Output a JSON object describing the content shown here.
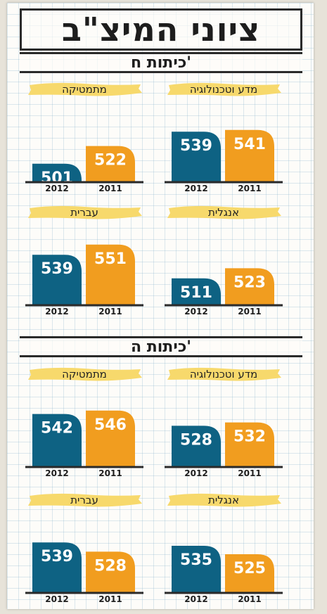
{
  "title": "ציוני המיצ\"ב",
  "colors": {
    "year_2012": "#0e6283",
    "year_2011": "#f19d1f",
    "highlight": "#f7d96c",
    "ink": "#2a2a2a"
  },
  "sections": [
    {
      "heading": "כיתות ח'",
      "panels": [
        {
          "subject": "מדע וטכנולוגיה"
        },
        {
          "subject": "מתמטיקה"
        },
        {
          "subject": "אנגלית"
        },
        {
          "subject": "עברית"
        }
      ]
    },
    {
      "heading": "כיתות ה'",
      "panels": [
        {
          "subject": "מדע וטכנולוגיה"
        },
        {
          "subject": "מתמטיקה"
        },
        {
          "subject": "אנגלית"
        },
        {
          "subject": "עברית"
        }
      ]
    }
  ],
  "chart_data": [
    {
      "type": "bar",
      "title": "מדע וטכנולוגיה",
      "group": "כיתות ח'",
      "categories": [
        "2012",
        "2011"
      ],
      "values": [
        539,
        541
      ]
    },
    {
      "type": "bar",
      "title": "מתמטיקה",
      "group": "כיתות ח'",
      "categories": [
        "2012",
        "2011"
      ],
      "values": [
        501,
        522
      ]
    },
    {
      "type": "bar",
      "title": "אנגלית",
      "group": "כיתות ח'",
      "categories": [
        "2012",
        "2011"
      ],
      "values": [
        511,
        523
      ]
    },
    {
      "type": "bar",
      "title": "עברית",
      "group": "כיתות ח'",
      "categories": [
        "2012",
        "2011"
      ],
      "values": [
        539,
        551
      ]
    },
    {
      "type": "bar",
      "title": "מדע וטכנולוגיה",
      "group": "כיתות ה'",
      "categories": [
        "2012",
        "2011"
      ],
      "values": [
        528,
        532
      ]
    },
    {
      "type": "bar",
      "title": "מתמטיקה",
      "group": "כיתות ה'",
      "categories": [
        "2012",
        "2011"
      ],
      "values": [
        542,
        546
      ]
    },
    {
      "type": "bar",
      "title": "אנגלית",
      "group": "כיתות ה'",
      "categories": [
        "2012",
        "2011"
      ],
      "values": [
        535,
        525
      ]
    },
    {
      "type": "bar",
      "title": "עברית",
      "group": "כיתות ה'",
      "categories": [
        "2012",
        "2011"
      ],
      "values": [
        539,
        528
      ]
    }
  ]
}
